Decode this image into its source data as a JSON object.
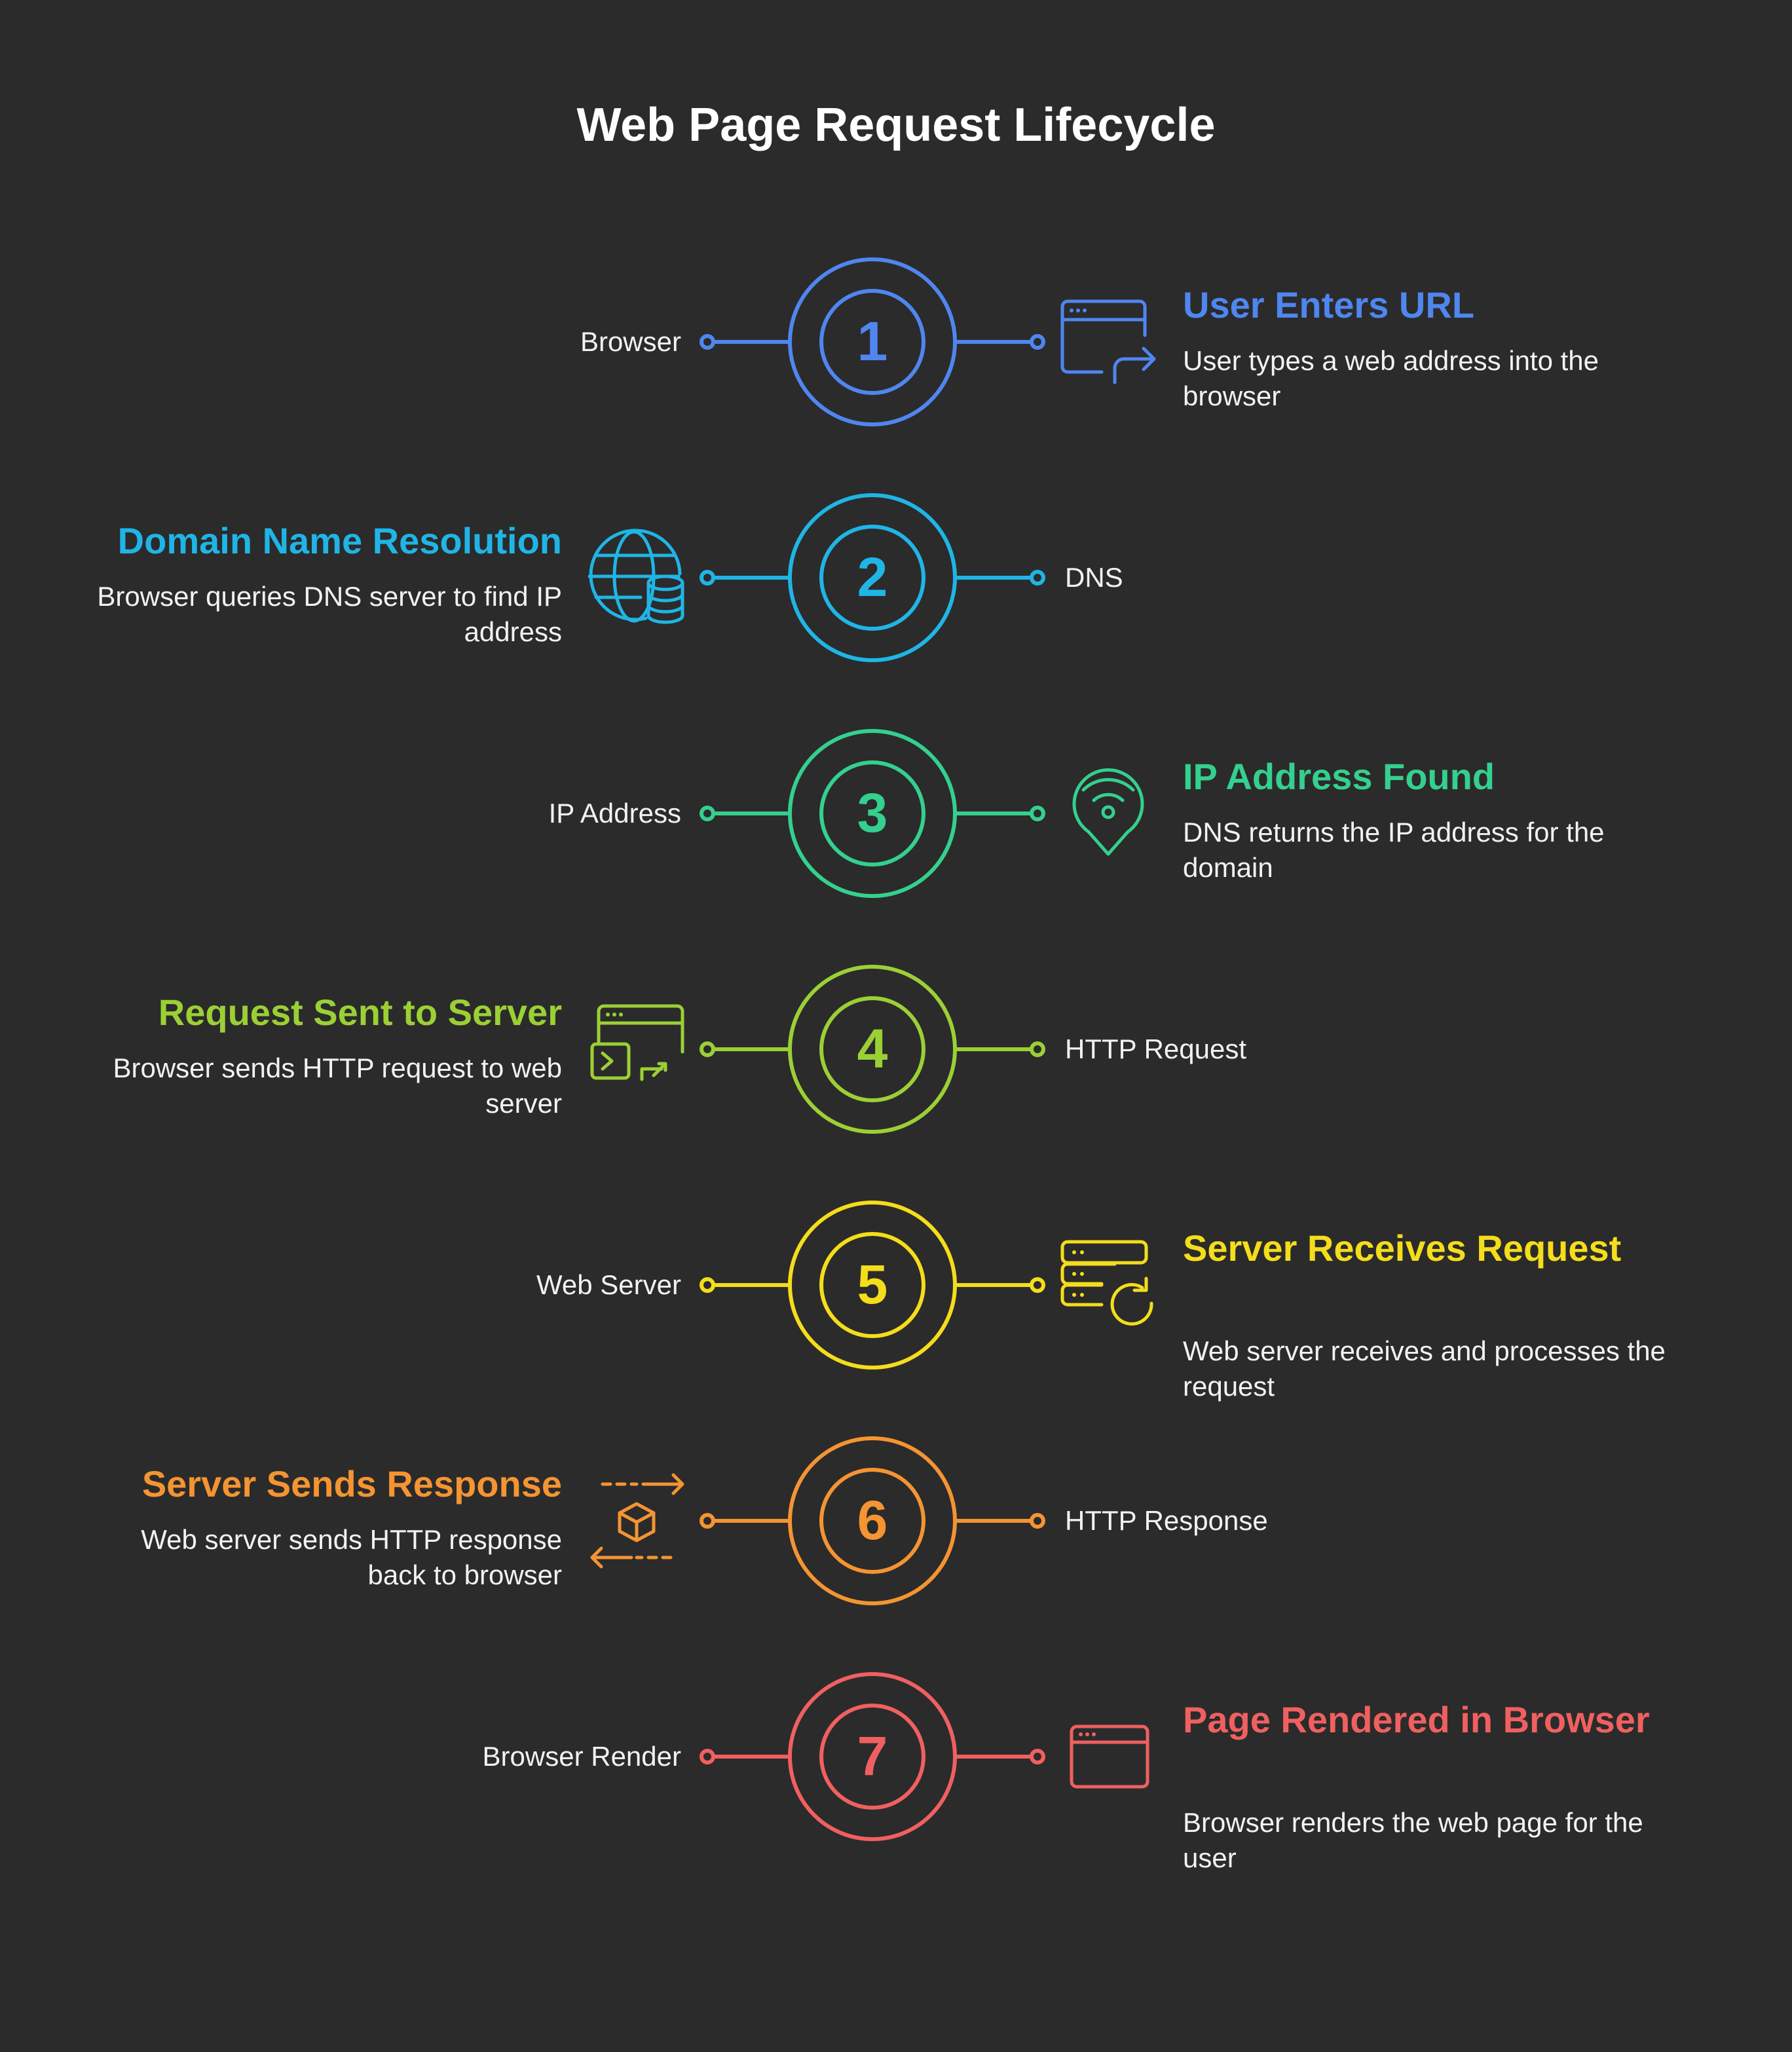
{
  "title": "Web Page Request Lifecycle",
  "steps": [
    {
      "number": "1",
      "color": "#4f86f0",
      "side": "right",
      "label": "Browser",
      "title": "User Enters URL",
      "description": "User types a web address into the browser",
      "icon": "browser-redirect-icon"
    },
    {
      "number": "2",
      "color": "#1fb5e6",
      "side": "left",
      "label": "DNS",
      "title": "Domain Name Resolution",
      "description": "Browser queries DNS server to find IP address",
      "icon": "globe-database-icon"
    },
    {
      "number": "3",
      "color": "#34d08e",
      "side": "right",
      "label": "IP Address",
      "title": "IP Address Found",
      "description": "DNS returns the IP address for the domain",
      "icon": "location-signal-icon"
    },
    {
      "number": "4",
      "color": "#9bd035",
      "side": "left",
      "label": "HTTP Request",
      "title": "Request Sent to Server",
      "description": "Browser sends HTTP request to web server",
      "icon": "terminal-upload-icon"
    },
    {
      "number": "5",
      "color": "#f4dd1b",
      "side": "right",
      "label": "Web Server",
      "title": "Server Receives Request",
      "description": "Web server receives and processes the request",
      "icon": "server-refresh-icon"
    },
    {
      "number": "6",
      "color": "#f49432",
      "side": "left",
      "label": "HTTP Response",
      "title": "Server Sends Response",
      "description": "Web server sends HTTP response back to browser",
      "icon": "package-exchange-icon"
    },
    {
      "number": "7",
      "color": "#f06060",
      "side": "right",
      "label": "Browser Render",
      "title": "Page Rendered in Browser",
      "description": "Browser renders the web page for the user",
      "icon": "browser-window-icon"
    }
  ]
}
